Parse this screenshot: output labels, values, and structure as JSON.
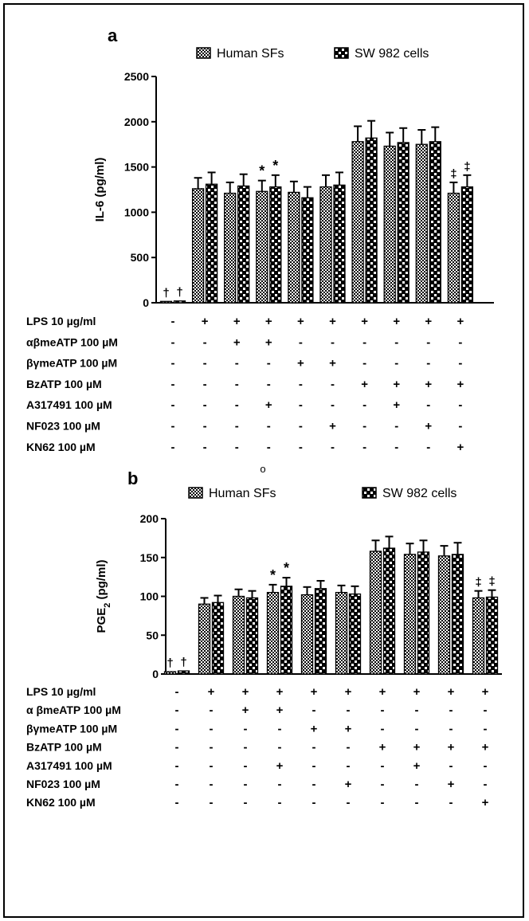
{
  "chart_data": [
    {
      "type": "bar",
      "panel_label": "a",
      "ylabel": "IL-6 (pg/ml)",
      "ylabel_sub": "",
      "ylabel_tail": "",
      "ylim": [
        0,
        2500
      ],
      "yticks": [
        0,
        500,
        1000,
        1500,
        2000,
        2500
      ],
      "legend_position": "top",
      "series": [
        {
          "name": "Human SFs",
          "pattern": "checker-fine",
          "values": [
            15,
            1260,
            1210,
            1230,
            1220,
            1280,
            1780,
            1730,
            1750,
            1210
          ],
          "errors": [
            0,
            120,
            120,
            120,
            120,
            130,
            170,
            150,
            160,
            120
          ]
        },
        {
          "name": "SW 982 cells",
          "pattern": "checker-coarse",
          "values": [
            20,
            1310,
            1290,
            1280,
            1160,
            1300,
            1820,
            1770,
            1780,
            1280
          ],
          "errors": [
            0,
            130,
            130,
            130,
            120,
            140,
            190,
            160,
            160,
            130
          ]
        }
      ],
      "annotations": [
        "†",
        "†",
        "",
        "",
        "",
        "",
        "*",
        "*",
        "",
        "",
        "",
        "",
        "",
        "",
        "",
        "",
        "",
        "",
        "‡",
        "‡"
      ],
      "treatments": [
        {
          "label": "LPS 10 µg/ml",
          "marks": [
            "-",
            "+",
            "+",
            "+",
            "+",
            "+",
            "+",
            "+",
            "+",
            "+"
          ]
        },
        {
          "label": "αβmeATP 100 µM",
          "marks": [
            "-",
            "-",
            "+",
            "+",
            "-",
            "-",
            "-",
            "-",
            "-",
            "-"
          ]
        },
        {
          "label": "βγmeATP 100 µM",
          "marks": [
            "-",
            "-",
            "-",
            "-",
            "+",
            "+",
            "-",
            "-",
            "-",
            "-"
          ]
        },
        {
          "label": "BzATP 100 µM",
          "marks": [
            "-",
            "-",
            "-",
            "-",
            "-",
            "-",
            "+",
            "+",
            "+",
            "+"
          ]
        },
        {
          "label": "A317491 100 µM",
          "marks": [
            "-",
            "-",
            "-",
            "+",
            "-",
            "-",
            "-",
            "+",
            "-",
            "-"
          ]
        },
        {
          "label": "NF023 100 µM",
          "marks": [
            "-",
            "-",
            "-",
            "-",
            "-",
            "+",
            "-",
            "-",
            "+",
            "-"
          ]
        },
        {
          "label": "KN62 100 µM",
          "marks": [
            "-",
            "-",
            "-",
            "-",
            "-",
            "-",
            "-",
            "-",
            "-",
            "+"
          ]
        }
      ]
    },
    {
      "type": "bar",
      "panel_label": "b",
      "ylabel": "PGE",
      "ylabel_sub": "2",
      "ylabel_tail": " (pg/ml)",
      "ylim": [
        0,
        200
      ],
      "yticks": [
        0,
        50,
        100,
        150,
        200
      ],
      "legend_position": "top",
      "series": [
        {
          "name": "Human SFs",
          "pattern": "checker-fine",
          "values": [
            3,
            90,
            100,
            105,
            102,
            105,
            158,
            154,
            152,
            98
          ],
          "errors": [
            0,
            8,
            9,
            10,
            10,
            9,
            14,
            14,
            13,
            9
          ]
        },
        {
          "name": "SW 982 cells",
          "pattern": "checker-coarse",
          "values": [
            4,
            92,
            98,
            113,
            110,
            103,
            162,
            157,
            154,
            99
          ],
          "errors": [
            0,
            9,
            9,
            11,
            10,
            10,
            15,
            15,
            15,
            9
          ]
        }
      ],
      "annotations": [
        "†",
        "†",
        "",
        "",
        "",
        "",
        "*",
        "*",
        "",
        "",
        "",
        "",
        "",
        "",
        "",
        "",
        "",
        "",
        "‡",
        "‡"
      ],
      "treatments": [
        {
          "label": "LPS 10 µg/ml",
          "marks": [
            "-",
            "+",
            "+",
            "+",
            "+",
            "+",
            "+",
            "+",
            "+",
            "+"
          ]
        },
        {
          "label": "α βmeATP 100 µM",
          "marks": [
            "-",
            "-",
            "+",
            "+",
            "-",
            "-",
            "-",
            "-",
            "-",
            "-"
          ]
        },
        {
          "label": "βγmeATP 100 µM",
          "marks": [
            "-",
            "-",
            "-",
            "-",
            "+",
            "+",
            "-",
            "-",
            "-",
            "-"
          ]
        },
        {
          "label": "BzATP 100 µM",
          "marks": [
            "-",
            "-",
            "-",
            "-",
            "-",
            "-",
            "+",
            "+",
            "+",
            "+"
          ]
        },
        {
          "label": "A317491 100 µM",
          "marks": [
            "-",
            "-",
            "-",
            "+",
            "-",
            "-",
            "-",
            "+",
            "-",
            "-"
          ]
        },
        {
          "label": "NF023 100 µM",
          "marks": [
            "-",
            "-",
            "-",
            "-",
            "-",
            "+",
            "-",
            "-",
            "+",
            "-"
          ]
        },
        {
          "label": "KN62 100 µM",
          "marks": [
            "-",
            "-",
            "-",
            "-",
            "-",
            "-",
            "-",
            "-",
            "-",
            "+"
          ]
        }
      ]
    }
  ],
  "stray_mark": "o"
}
